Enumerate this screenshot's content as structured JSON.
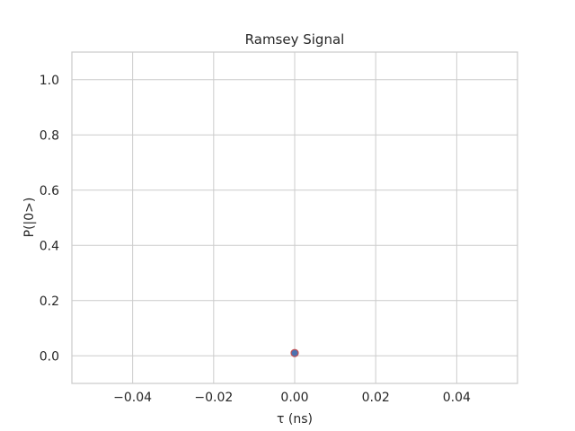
{
  "chart_data": {
    "type": "scatter",
    "title": "Ramsey Signal",
    "xlabel": "τ (ns)",
    "ylabel": "P(|0>)",
    "xlim": [
      -0.055,
      0.055
    ],
    "ylim": [
      -0.1,
      1.1
    ],
    "xticks": [
      -0.04,
      -0.02,
      0.0,
      0.02,
      0.04
    ],
    "xtick_labels": [
      "−0.04",
      "−0.02",
      "0.00",
      "0.02",
      "0.04"
    ],
    "yticks": [
      0.0,
      0.2,
      0.4,
      0.6,
      0.8,
      1.0
    ],
    "ytick_labels": [
      "0.0",
      "0.2",
      "0.4",
      "0.6",
      "0.8",
      "1.0"
    ],
    "grid": true,
    "series": [
      {
        "x": [
          0.0
        ],
        "y": [
          0.01
        ],
        "color": "#4c72b0",
        "edge_color": "#c44e52"
      }
    ]
  }
}
